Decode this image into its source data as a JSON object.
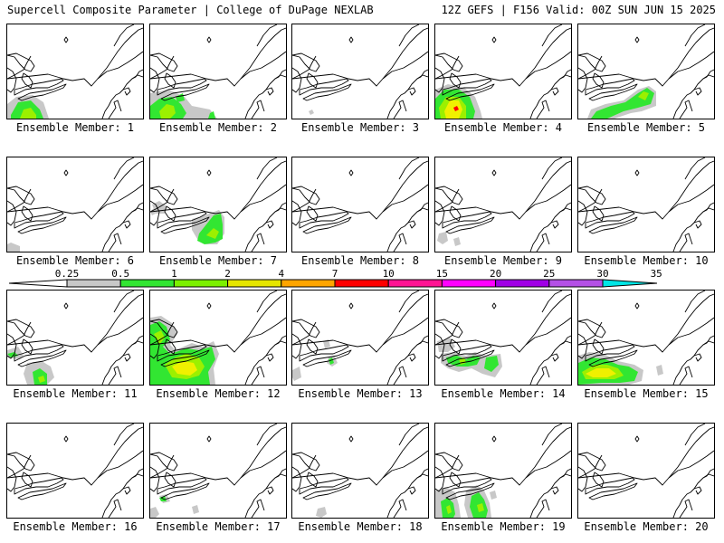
{
  "header": {
    "left_title": "Supercell Composite Parameter | College of DuPage NEXLAB",
    "right_title": "12Z GEFS | F156 Valid: 00Z SUN JUN 15 2025"
  },
  "colorbar": {
    "ticks": [
      "0.25",
      "0.5",
      "1",
      "2",
      "4",
      "7",
      "10",
      "15",
      "20",
      "25",
      "30",
      "35"
    ],
    "colors": [
      "#c8c8c8",
      "#32e632",
      "#7cf000",
      "#e6e600",
      "#ffa500",
      "#ff0000",
      "#ff1493",
      "#ff00ff",
      "#a000e6",
      "#b450e6",
      "#00e6e6"
    ]
  },
  "fill_colors": {
    "gray": "#c8c8c8",
    "green": "#32e632",
    "lime": "#9cf000",
    "yellow": "#f0f000",
    "red": "#ff0000"
  },
  "panels": [
    {
      "label": "Ensemble Member: 1"
    },
    {
      "label": "Ensemble Member: 2"
    },
    {
      "label": "Ensemble Member: 3"
    },
    {
      "label": "Ensemble Member: 4"
    },
    {
      "label": "Ensemble Member: 5"
    },
    {
      "label": "Ensemble Member: 6"
    },
    {
      "label": "Ensemble Member: 7"
    },
    {
      "label": "Ensemble Member: 8"
    },
    {
      "label": "Ensemble Member: 9"
    },
    {
      "label": "Ensemble Member: 10"
    },
    {
      "label": "Ensemble Member: 11"
    },
    {
      "label": "Ensemble Member: 12"
    },
    {
      "label": "Ensemble Member: 13"
    },
    {
      "label": "Ensemble Member: 14"
    },
    {
      "label": "Ensemble Member: 15"
    },
    {
      "label": "Ensemble Member: 16"
    },
    {
      "label": "Ensemble Member: 17"
    },
    {
      "label": "Ensemble Member: 18"
    },
    {
      "label": "Ensemble Member: 19"
    },
    {
      "label": "Ensemble Member: 20"
    }
  ]
}
